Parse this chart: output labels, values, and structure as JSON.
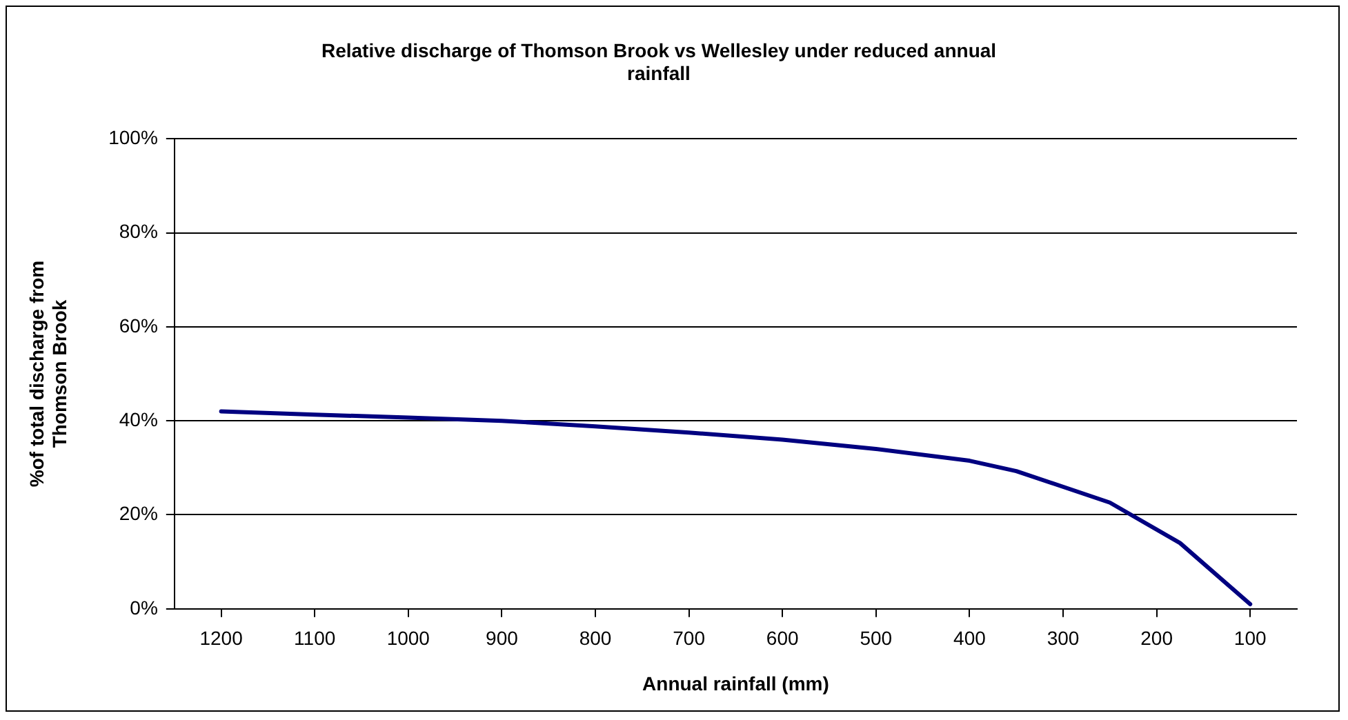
{
  "chart_data": {
    "type": "line",
    "title": "Relative discharge of Thomson Brook vs Wellesley under reduced annual rainfall",
    "xlabel": "Annual rainfall (mm)",
    "ylabel": "%of total discharge from Thomson Brook",
    "x": [
      1200,
      1100,
      1000,
      900,
      800,
      700,
      600,
      500,
      400,
      350,
      250,
      175,
      100
    ],
    "series": [
      {
        "color": "#000080",
        "values": [
          42,
          41.3,
          40.7,
          40,
          38.8,
          37.5,
          36,
          34,
          31.5,
          29.3,
          22.6,
          14,
          1
        ]
      }
    ],
    "xlim": [
      1250,
      50
    ],
    "xticks": [
      1200,
      1100,
      1000,
      900,
      800,
      700,
      600,
      500,
      400,
      300,
      200,
      100
    ],
    "ylim": [
      0,
      100
    ],
    "yticks": [
      {
        "value": 0,
        "label": "0%"
      },
      {
        "value": 20,
        "label": "20%"
      },
      {
        "value": 40,
        "label": "40%"
      },
      {
        "value": 60,
        "label": "60%"
      },
      {
        "value": 80,
        "label": "80%"
      },
      {
        "value": 100,
        "label": "100%"
      }
    ],
    "grid": "y",
    "legend": false,
    "marker": "none",
    "line_style": "solid"
  }
}
